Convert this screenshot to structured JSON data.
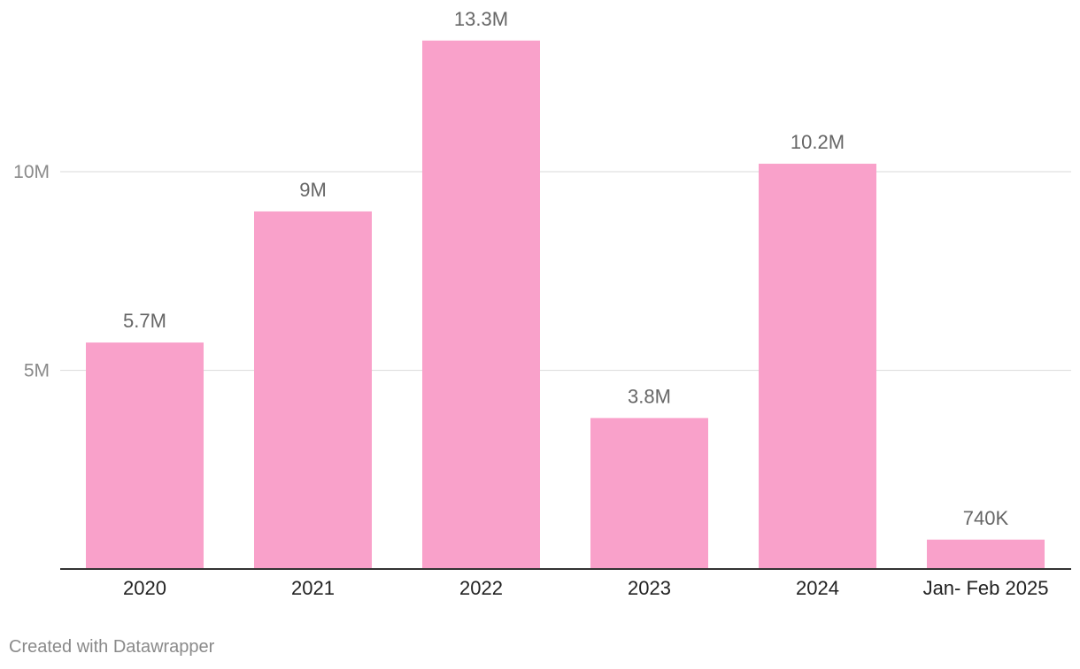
{
  "chart_data": {
    "type": "bar",
    "categories": [
      "2020",
      "2021",
      "2022",
      "2023",
      "2024",
      "Jan- Feb 2025"
    ],
    "values": [
      5.7,
      9.0,
      13.3,
      3.8,
      10.2,
      0.74
    ],
    "value_labels": [
      "5.7M",
      "9M",
      "13.3M",
      "3.8M",
      "10.2M",
      "740K"
    ],
    "y_ticks": [
      {
        "value": 5,
        "label": "5M"
      },
      {
        "value": 10,
        "label": "10M"
      }
    ],
    "ylim": [
      0,
      14.2
    ],
    "grid": true,
    "colors": {
      "bar": "#f9a1ca",
      "value_label": "#666666",
      "tick_label": "#8a8a8a",
      "category_label": "#222222",
      "gridline": "#e1e1e1",
      "baseline": "#333333"
    }
  },
  "footer": {
    "credit": "Created with Datawrapper"
  }
}
